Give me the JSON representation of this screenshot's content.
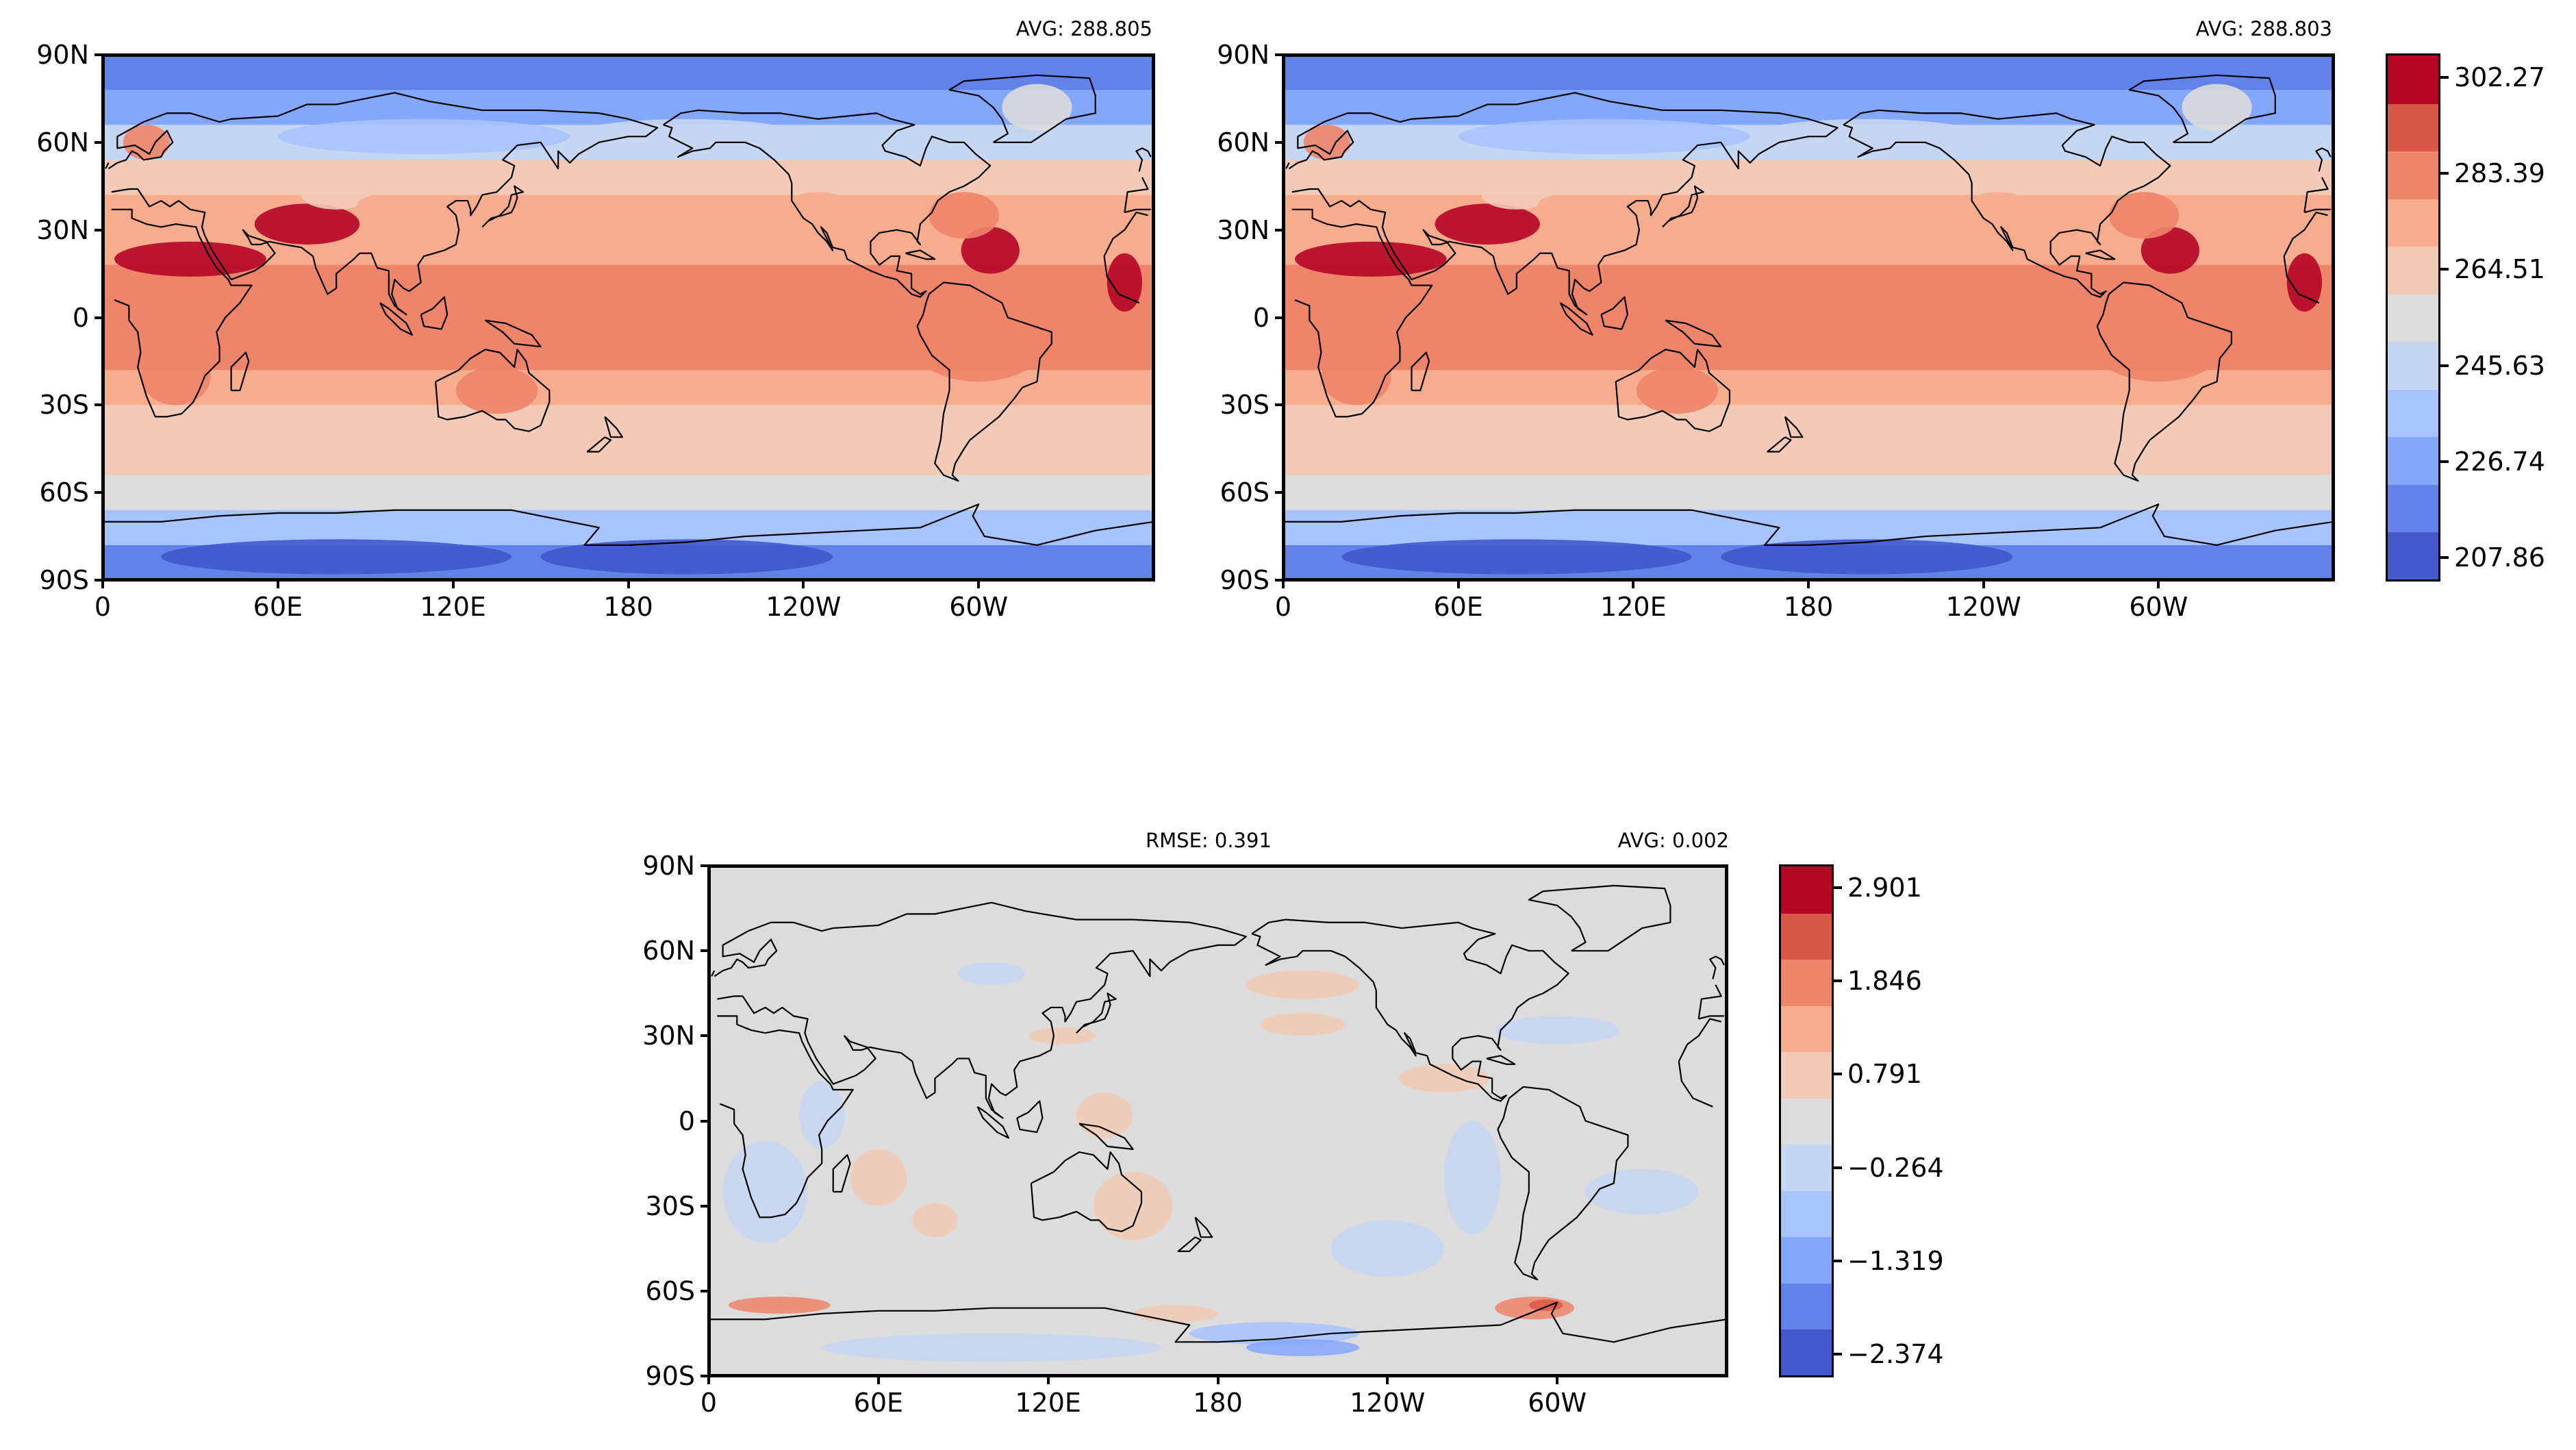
{
  "chart_data": [
    {
      "type": "heatmap",
      "annotation_right": "AVG: 288.805",
      "x_ticks": [
        "0",
        "60E",
        "120E",
        "180",
        "120W",
        "60W"
      ],
      "y_ticks": [
        "90N",
        "60N",
        "30N",
        "0",
        "30S",
        "60S",
        "90S"
      ],
      "zonal_mean_levels": [
        1,
        2,
        4,
        6,
        7,
        7,
        8,
        8,
        8,
        7,
        6,
        6,
        5,
        3,
        1
      ]
    },
    {
      "type": "heatmap",
      "annotation_right": "AVG: 288.803",
      "x_ticks": [
        "0",
        "60E",
        "120E",
        "180",
        "120W",
        "60W"
      ],
      "y_ticks": [
        "90N",
        "60N",
        "30N",
        "0",
        "30S",
        "60S",
        "90S"
      ],
      "zonal_mean_levels": [
        1,
        2,
        4,
        6,
        7,
        7,
        8,
        8,
        8,
        7,
        6,
        6,
        5,
        3,
        1
      ],
      "colorbar": {
        "colors": [
          "#4358cb",
          "#6282ea",
          "#84a6fb",
          "#a7c4fe",
          "#c5d6f2",
          "#dddcdc",
          "#f2cab5",
          "#f7ac8e",
          "#ee8469",
          "#d95847",
          "#b40426"
        ],
        "tick_labels": [
          "302.27",
          "283.39",
          "264.51",
          "245.63",
          "226.74",
          "207.86"
        ]
      }
    },
    {
      "type": "heatmap",
      "annotation_left": "RMSE: 0.391",
      "annotation_right": "AVG: 0.002",
      "x_ticks": [
        "0",
        "60E",
        "120E",
        "180",
        "120W",
        "60W"
      ],
      "y_ticks": [
        "90N",
        "60N",
        "30N",
        "0",
        "30S",
        "60S",
        "90S"
      ],
      "colorbar": {
        "colors": [
          "#4358cb",
          "#6282ea",
          "#84a6fb",
          "#a7c4fe",
          "#c5d6f2",
          "#dddcdc",
          "#f2cab5",
          "#f7ac8e",
          "#ee8469",
          "#d95847",
          "#b40426"
        ],
        "tick_labels": [
          "2.901",
          "1.846",
          "0.791",
          "−0.264",
          "−1.319",
          "−2.374"
        ]
      }
    }
  ]
}
